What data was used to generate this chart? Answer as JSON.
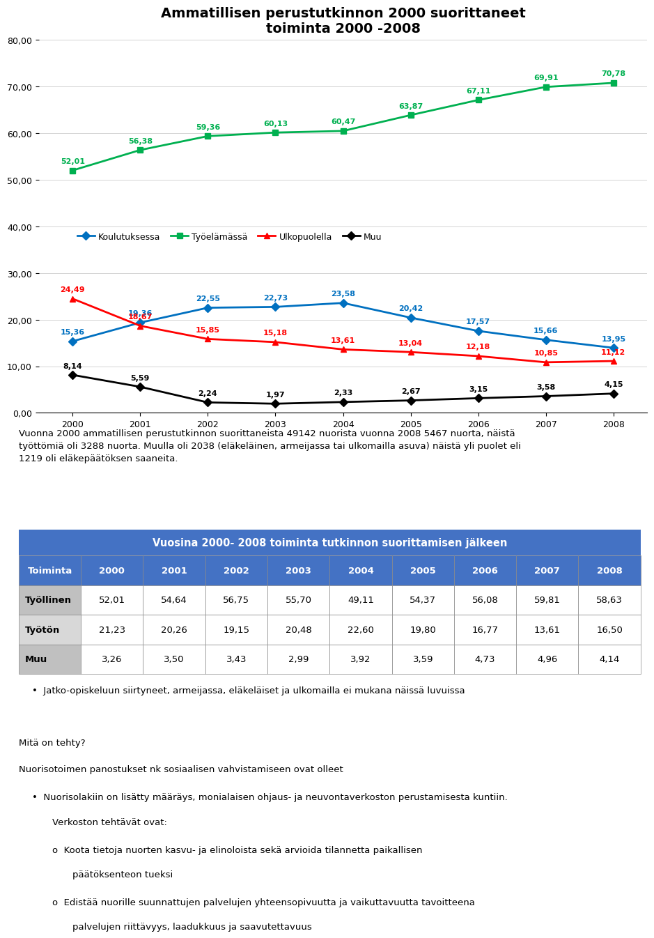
{
  "title_line1": "Ammatillisen perustutkinnon 2000 suorittaneet",
  "title_line2": "toiminta 2000 -2008",
  "years": [
    2000,
    2001,
    2002,
    2003,
    2004,
    2005,
    2006,
    2007,
    2008
  ],
  "koulutuksessa": [
    15.36,
    19.36,
    22.55,
    22.73,
    23.58,
    20.42,
    17.57,
    15.66,
    13.95
  ],
  "tyoelamassa": [
    52.01,
    56.38,
    59.36,
    60.13,
    60.47,
    63.87,
    67.11,
    69.91,
    70.78
  ],
  "ulkopuolella": [
    24.49,
    18.67,
    15.85,
    15.18,
    13.61,
    13.04,
    12.18,
    10.85,
    11.12
  ],
  "muu": [
    8.14,
    5.59,
    2.24,
    1.97,
    2.33,
    2.67,
    3.15,
    3.58,
    4.15
  ],
  "ylim": [
    0,
    80
  ],
  "yticks": [
    0,
    10,
    20,
    30,
    40,
    50,
    60,
    70,
    80
  ],
  "ytick_labels": [
    "0,00",
    "10,00",
    "20,00",
    "30,00",
    "40,00",
    "50,00",
    "60,00",
    "70,00",
    "80,00"
  ],
  "color_koulutuksessa": "#0070C0",
  "color_tyoelamassa": "#00B050",
  "color_ulkopuolella": "#FF0000",
  "color_muu": "#000000",
  "legend_labels": [
    "Koulutuksessa",
    "Työelämässä",
    "Ulkopuolella",
    "Muu"
  ],
  "paragraph_text": "Vuonna 2000 ammatillisen perustutkinnon suorittaneista 49142 nuorista vuonna 2008 5467 nuorta, näistä\ntyöttömiä oli 3288 nuorta. Muulla oli 2038 (eläkeläinen, armeijassa tai ulkomailla asuva) näistä yli puolet eli\n1219 oli eläkepäätöksen saaneita.",
  "table_header": "Vuosina 2000- 2008 toiminta tutkinnon suorittamisen jälkeen",
  "table_col_headers": [
    "Toiminta",
    "2000",
    "2001",
    "2002",
    "2003",
    "2004",
    "2005",
    "2006",
    "2007",
    "2008"
  ],
  "table_rows": [
    [
      "Työllinen",
      "52,01",
      "54,64",
      "56,75",
      "55,70",
      "49,11",
      "54,37",
      "56,08",
      "59,81",
      "58,63"
    ],
    [
      "Työtön",
      "21,23",
      "20,26",
      "19,15",
      "20,48",
      "22,60",
      "19,80",
      "16,77",
      "13,61",
      "16,50"
    ],
    [
      "Muu",
      "3,26",
      "3,50",
      "3,43",
      "2,99",
      "3,92",
      "3,59",
      "4,73",
      "4,96",
      "4,14"
    ]
  ],
  "table_header_color": "#4472C4",
  "table_header_text_color": "#FFFFFF",
  "bullet_text": "Jatko-opiskeluun siirtyneet, armeijassa, eläkeläiset ja ulkomailla ei mukana näissä luvuissa",
  "mita_text": "Mitä on tehty?",
  "nuorisotoimi_text": "Nuorisotoimen panostukset nk sosiaalisen vahvistamiseen ovat olleet",
  "bullet2_line1": "Nuorisolakiin on lisätty määräys, monialaisen ohjaus- ja neuvontaverkoston perustamisesta kuntiin.",
  "bullet2_line2": "Verkoston tehtävät ovat:",
  "sub_bullet1_line1": "Koota tietoja nuorten kasvu- ja elinoloista sekä arvioida tilannetta paikallisen",
  "sub_bullet1_line2": "päätöksenteon tueksi",
  "sub_bullet2_line1": "Edistää nuorille suunnattujen palvelujen yhteensopivuutta ja vaikuttavuutta tavoitteena",
  "sub_bullet2_line2": "palvelujen riittävyys, laadukkuus ja saavutettavuus"
}
